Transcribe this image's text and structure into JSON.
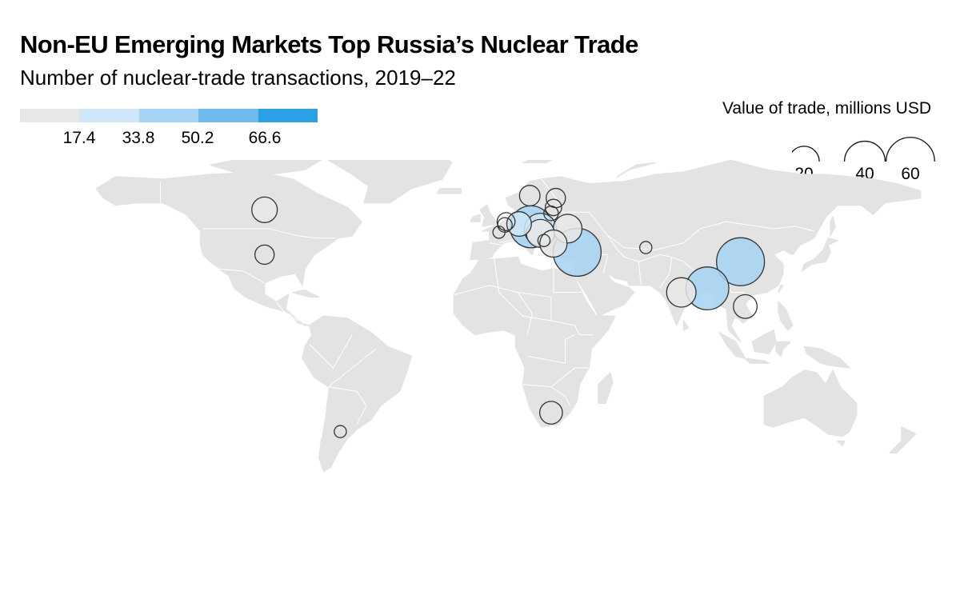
{
  "title": "Non-EU Emerging Markets Top Russia’s Nuclear Trade",
  "subtitle": "Number of nuclear-trade transactions, 2019–22",
  "color_legend": {
    "colors": [
      "#e8e8e8",
      "#cfe6f8",
      "#a6d3f3",
      "#6fbaec",
      "#29a1e4"
    ],
    "breaks": [
      "17.4",
      "33.8",
      "50.2",
      "66.6"
    ]
  },
  "size_legend": {
    "title": "Value of trade, millions USD",
    "values": [
      20,
      40,
      60
    ],
    "labels": [
      "20",
      "40",
      "60"
    ]
  },
  "colors": {
    "land": "#e3e3e3",
    "border": "#ffffff",
    "bubble_stroke": "#333333"
  },
  "bubbles": [
    {
      "country": "Canada",
      "lon": -97,
      "lat": 57,
      "value": 11,
      "transactions": 5
    },
    {
      "country": "United States",
      "lon": -97,
      "lat": 38,
      "value": 5,
      "transactions": 5
    },
    {
      "country": "Argentina",
      "lon": -65,
      "lat": -37,
      "value": 1,
      "transactions": 5
    },
    {
      "country": "South Africa",
      "lon": 24,
      "lat": -29,
      "value": 8,
      "transactions": 5
    },
    {
      "country": "Sweden",
      "lon": 15,
      "lat": 63,
      "value": 6,
      "transactions": 5
    },
    {
      "country": "Finland",
      "lon": 26,
      "lat": 62,
      "value": 5,
      "transactions": 5
    },
    {
      "country": "Estonia",
      "lon": 25,
      "lat": 58,
      "value": 3,
      "transactions": 5
    },
    {
      "country": "Lithuania",
      "lon": 24,
      "lat": 55.5,
      "value": 2,
      "transactions": 5
    },
    {
      "country": "Netherlands",
      "lon": 5,
      "lat": 52,
      "value": 4,
      "transactions": 5
    },
    {
      "country": "Belgium",
      "lon": 4.5,
      "lat": 50.6,
      "value": 2,
      "transactions": 5
    },
    {
      "country": "France",
      "lon": 2,
      "lat": 47.5,
      "value": 1,
      "transactions": 5
    },
    {
      "country": "Germany",
      "lon": 10.5,
      "lat": 51,
      "value": 10,
      "transactions": 20
    },
    {
      "country": "Czechia",
      "lon": 15.5,
      "lat": 49.8,
      "value": 38,
      "transactions": 40
    },
    {
      "country": "Slovakia",
      "lon": 19.5,
      "lat": 48.7,
      "value": 20,
      "transactions": 20
    },
    {
      "country": "Hungary",
      "lon": 19.5,
      "lat": 47,
      "value": 14,
      "transactions": 10
    },
    {
      "country": "Bulgaria",
      "lon": 25,
      "lat": 42.7,
      "value": 13,
      "transactions": 10
    },
    {
      "country": "Serbia",
      "lon": 21,
      "lat": 44,
      "value": 1,
      "transactions": 5
    },
    {
      "country": "Ukraine",
      "lon": 31,
      "lat": 49,
      "value": 15,
      "transactions": 10
    },
    {
      "country": "Turkey",
      "lon": 35,
      "lat": 39,
      "value": 52,
      "transactions": 45
    },
    {
      "country": "Uzbekistan",
      "lon": 64,
      "lat": 41,
      "value": 1,
      "transactions": 5
    },
    {
      "country": "India",
      "lon": 79,
      "lat": 22,
      "value": 16,
      "transactions": 10
    },
    {
      "country": "Bangladesh",
      "lon": 90,
      "lat": 23.7,
      "value": 40,
      "transactions": 45
    },
    {
      "country": "China",
      "lon": 104,
      "lat": 35,
      "value": 52,
      "transactions": 45
    },
    {
      "country": "Vietnam",
      "lon": 106,
      "lat": 16,
      "value": 9,
      "transactions": 5
    }
  ]
}
